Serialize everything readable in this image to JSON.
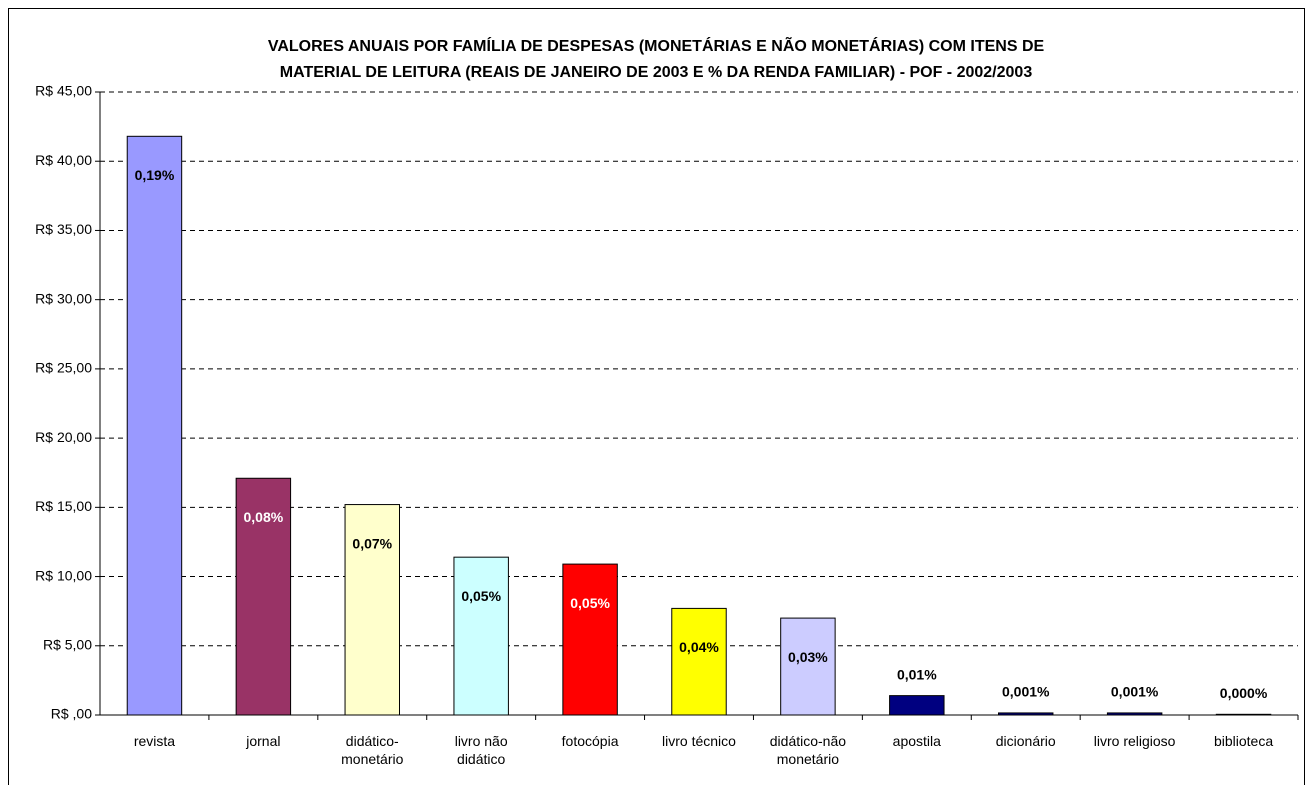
{
  "chart_data": {
    "type": "bar",
    "title": "VALORES ANUAIS POR FAMÍLIA DE DESPESAS (MONETÁRIAS E NÃO MONETÁRIAS) COM ITENS DE\nMATERIAL DE LEITURA (REAIS DE JANEIRO DE 2003 E % DA RENDA FAMILIAR) - POF - 2002/2003",
    "categories": [
      "revista",
      "jornal",
      "didático-\nmonetário",
      "livro não\ndidático",
      "fotocópia",
      "livro técnico",
      "didático-não\nmonetário",
      "apostila",
      "dicionário",
      "livro religioso",
      "biblioteca"
    ],
    "values": [
      41.8,
      17.1,
      15.2,
      11.4,
      10.9,
      7.7,
      7.0,
      1.4,
      0.15,
      0.15,
      0.05
    ],
    "colors": [
      "#9999ff",
      "#993366",
      "#ffffcc",
      "#ccffff",
      "#ff0000",
      "#ffff00",
      "#ccccff",
      "#000080",
      "#000080",
      "#000080",
      "#000080"
    ],
    "percent_labels": [
      "0,19%",
      "0,08%",
      "0,07%",
      "0,05%",
      "0,05%",
      "0,04%",
      "0,03%",
      "0,01%",
      "0,001%",
      "0,001%",
      "0,000%"
    ],
    "ylim": [
      0,
      45
    ],
    "yticks": [
      {
        "value": 0,
        "label": "R$ ,00"
      },
      {
        "value": 5,
        "label": "R$ 5,00"
      },
      {
        "value": 10,
        "label": "R$ 10,00"
      },
      {
        "value": 15,
        "label": "R$ 15,00"
      },
      {
        "value": 20,
        "label": "R$ 20,00"
      },
      {
        "value": 25,
        "label": "R$ 25,00"
      },
      {
        "value": 30,
        "label": "R$ 30,00"
      },
      {
        "value": 35,
        "label": "R$ 35,00"
      },
      {
        "value": 40,
        "label": "R$ 40,00"
      },
      {
        "value": 45,
        "label": "R$ 45,00"
      }
    ],
    "grid": true
  }
}
